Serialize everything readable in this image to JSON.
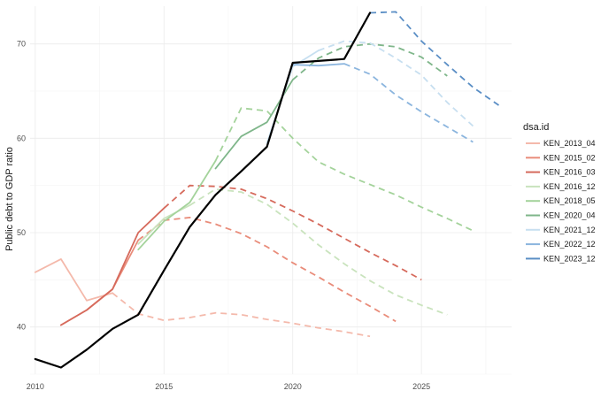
{
  "chart_data": {
    "type": "line",
    "title": "",
    "xlabel": "",
    "ylabel": "Public debt to GDP ratio",
    "xlim": [
      2009.8,
      2028.5
    ],
    "ylim": [
      35,
      74
    ],
    "x_ticks": [
      2010,
      2015,
      2020,
      2025
    ],
    "y_ticks": [
      40,
      50,
      60,
      70
    ],
    "grid": true,
    "legend": {
      "title": "dsa.id",
      "position": "right"
    },
    "actual": {
      "color": "#000000",
      "points": [
        [
          2010,
          36.6
        ],
        [
          2011,
          35.7
        ],
        [
          2012,
          37.6
        ],
        [
          2013,
          39.8
        ],
        [
          2014,
          41.3
        ],
        [
          2015,
          46.0
        ],
        [
          2016,
          50.6
        ],
        [
          2017,
          54.0
        ],
        [
          2018,
          56.5
        ],
        [
          2019,
          59.1
        ],
        [
          2020,
          68.0
        ],
        [
          2021,
          68.2
        ],
        [
          2022,
          68.4
        ],
        [
          2023,
          73.3
        ]
      ]
    },
    "series": [
      {
        "name": "KEN_2013_04",
        "color": "#f4b9ab",
        "history": [
          [
            2010,
            45.8
          ],
          [
            2011,
            47.2
          ],
          [
            2012,
            42.8
          ],
          [
            2013,
            43.6
          ]
        ],
        "projection": [
          [
            2013,
            43.6
          ],
          [
            2014,
            41.4
          ],
          [
            2015,
            40.7
          ],
          [
            2016,
            41.0
          ],
          [
            2017,
            41.5
          ],
          [
            2018,
            41.3
          ],
          [
            2019,
            40.8
          ],
          [
            2020,
            40.4
          ],
          [
            2021,
            39.9
          ],
          [
            2022,
            39.5
          ],
          [
            2023,
            39.0
          ]
        ]
      },
      {
        "name": "KEN_2015_02",
        "color": "#e98c7a",
        "history": [
          [
            2011,
            40.2
          ],
          [
            2012,
            41.8
          ],
          [
            2013,
            44.0
          ],
          [
            2014,
            49.2
          ]
        ],
        "projection": [
          [
            2014,
            49.2
          ],
          [
            2015,
            51.3
          ],
          [
            2016,
            51.6
          ],
          [
            2017,
            50.9
          ],
          [
            2018,
            49.9
          ],
          [
            2019,
            48.5
          ],
          [
            2020,
            46.8
          ],
          [
            2021,
            45.3
          ],
          [
            2022,
            43.7
          ],
          [
            2023,
            42.2
          ],
          [
            2024,
            40.6
          ]
        ]
      },
      {
        "name": "KEN_2016_03",
        "color": "#d66a5c",
        "history": [
          [
            2011,
            40.2
          ],
          [
            2012,
            41.8
          ],
          [
            2013,
            44.0
          ],
          [
            2014,
            50.0
          ],
          [
            2015,
            52.6
          ]
        ],
        "projection": [
          [
            2015,
            52.6
          ],
          [
            2016,
            55.0
          ],
          [
            2017,
            54.9
          ],
          [
            2018,
            54.6
          ],
          [
            2019,
            53.6
          ],
          [
            2020,
            52.3
          ],
          [
            2021,
            50.9
          ],
          [
            2022,
            49.4
          ],
          [
            2023,
            47.9
          ],
          [
            2024,
            46.5
          ],
          [
            2025,
            45.0
          ]
        ]
      },
      {
        "name": "KEN_2016_12",
        "color": "#c9e3bd",
        "history": [
          [
            2014,
            48.8
          ],
          [
            2015,
            51.5
          ],
          [
            2016,
            52.9
          ]
        ],
        "projection": [
          [
            2016,
            52.9
          ],
          [
            2017,
            54.6
          ],
          [
            2018,
            54.3
          ],
          [
            2019,
            53.0
          ],
          [
            2020,
            51.0
          ],
          [
            2021,
            48.7
          ],
          [
            2022,
            46.7
          ],
          [
            2023,
            44.9
          ],
          [
            2024,
            43.4
          ],
          [
            2025,
            42.3
          ],
          [
            2026,
            41.3
          ]
        ]
      },
      {
        "name": "KEN_2018_05",
        "color": "#a4d39b",
        "history": [
          [
            2014,
            48.2
          ],
          [
            2015,
            51.2
          ],
          [
            2016,
            53.2
          ],
          [
            2017,
            57.6
          ]
        ],
        "projection": [
          [
            2017,
            57.6
          ],
          [
            2018,
            63.2
          ],
          [
            2019,
            62.9
          ],
          [
            2020,
            60.0
          ],
          [
            2021,
            57.5
          ],
          [
            2022,
            56.2
          ],
          [
            2023,
            55.1
          ],
          [
            2024,
            54.0
          ],
          [
            2025,
            52.7
          ],
          [
            2026,
            51.5
          ],
          [
            2027,
            50.2
          ]
        ]
      },
      {
        "name": "KEN_2020_04",
        "color": "#7fb68a",
        "history": [
          [
            2017,
            56.8
          ],
          [
            2018,
            60.2
          ],
          [
            2019,
            61.7
          ],
          [
            2020,
            66.2
          ]
        ],
        "projection": [
          [
            2020,
            66.2
          ],
          [
            2021,
            68.5
          ],
          [
            2022,
            69.7
          ],
          [
            2023,
            70.0
          ],
          [
            2024,
            69.7
          ],
          [
            2025,
            68.6
          ],
          [
            2026,
            66.6
          ]
        ]
      },
      {
        "name": "KEN_2021_12",
        "color": "#c7dff0",
        "history": [
          [
            2019,
            59.5
          ],
          [
            2020,
            67.6
          ],
          [
            2021,
            69.3
          ]
        ],
        "projection": [
          [
            2021,
            69.3
          ],
          [
            2022,
            70.3
          ],
          [
            2023,
            70.1
          ],
          [
            2024,
            68.5
          ],
          [
            2025,
            66.7
          ],
          [
            2026,
            63.8
          ],
          [
            2027,
            61.3
          ]
        ]
      },
      {
        "name": "KEN_2022_12",
        "color": "#8bb5de",
        "history": [
          [
            2020,
            67.8
          ],
          [
            2021,
            67.7
          ],
          [
            2022,
            67.9
          ]
        ],
        "projection": [
          [
            2022,
            67.9
          ],
          [
            2023,
            66.8
          ],
          [
            2024,
            64.6
          ],
          [
            2025,
            62.8
          ],
          [
            2026,
            61.2
          ],
          [
            2027,
            59.6
          ]
        ]
      },
      {
        "name": "KEN_2023_12",
        "color": "#5a8ec5",
        "history": [],
        "projection": [
          [
            2023,
            73.3
          ],
          [
            2024,
            73.4
          ],
          [
            2025,
            70.3
          ],
          [
            2026,
            67.8
          ],
          [
            2027,
            65.4
          ],
          [
            2028,
            63.5
          ]
        ]
      }
    ]
  }
}
